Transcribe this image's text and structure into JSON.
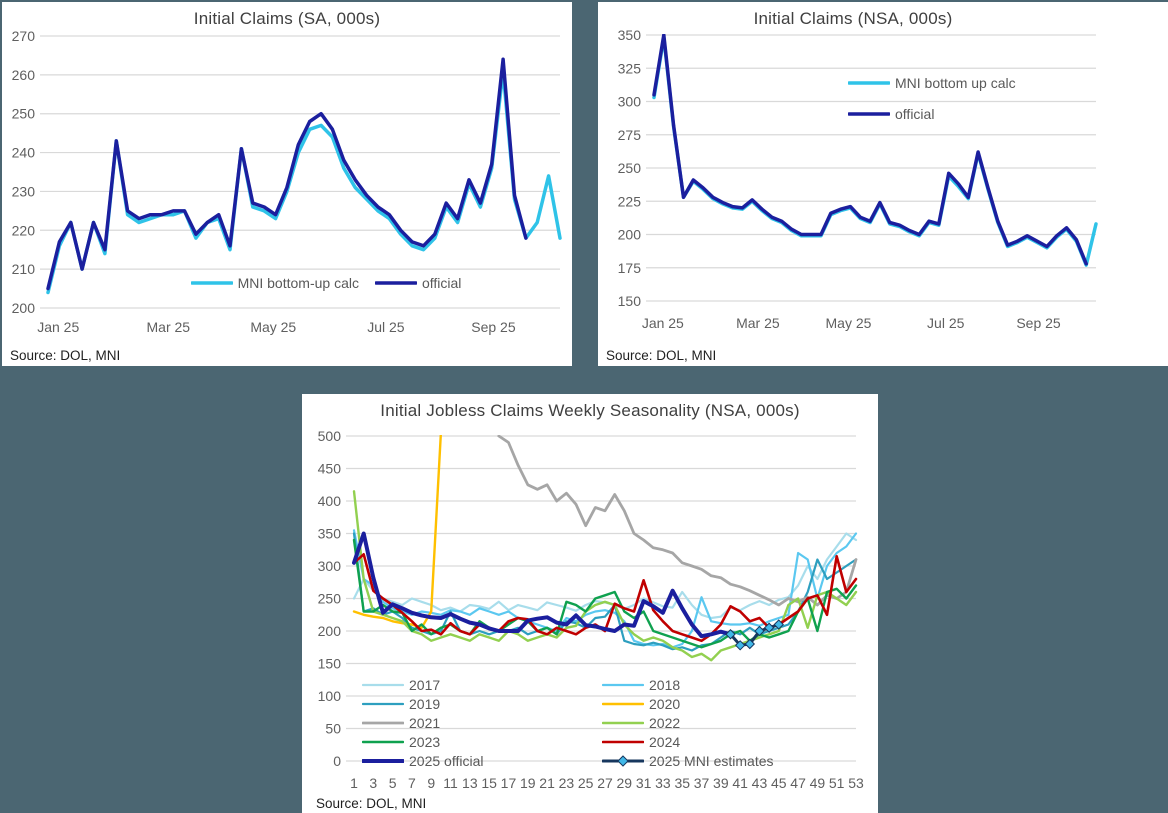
{
  "page": {
    "background_color": "#4b6672"
  },
  "chart_data": [
    {
      "type": "line",
      "title": "Initial Claims (SA, 000s)",
      "source": "Source: DOL, MNI",
      "ylim": [
        200,
        270
      ],
      "yticks": [
        200,
        210,
        220,
        230,
        240,
        250,
        260,
        270
      ],
      "grid": true,
      "legend_position": "bottom-center",
      "xticks": {
        "labels": [
          "Jan 25",
          "Mar 25",
          "May 25",
          "Jul 25",
          "Sep 25"
        ],
        "fractions": [
          0.02,
          0.235,
          0.44,
          0.66,
          0.87
        ]
      },
      "series": [
        {
          "name": "MNI bottom-up calc",
          "color": "#2fc3e8",
          "width": 3.5,
          "values": [
            204,
            216,
            222,
            210,
            222,
            214,
            243,
            224,
            222,
            223,
            224,
            224,
            225,
            218,
            222,
            223,
            215,
            241,
            226,
            225,
            223,
            230,
            240,
            246,
            247,
            244,
            236,
            231,
            228,
            225,
            223,
            219,
            216,
            215,
            218,
            226,
            222,
            232,
            226,
            236,
            261,
            228,
            218,
            222,
            234,
            218
          ]
        },
        {
          "name": "official",
          "color": "#1b1f9e",
          "width": 3.5,
          "values": [
            205,
            217,
            222,
            210,
            222,
            215,
            243,
            225,
            223,
            224,
            224,
            225,
            225,
            219,
            222,
            224,
            216,
            241,
            227,
            226,
            224,
            231,
            242,
            248,
            250,
            246,
            238,
            233,
            229,
            226,
            224,
            220,
            217,
            216,
            219,
            227,
            223,
            233,
            227,
            237,
            264,
            229,
            218,
            null,
            null,
            null
          ]
        }
      ]
    },
    {
      "type": "line",
      "title": "Initial Claims (NSA, 000s)",
      "source": "Source: DOL, MNI",
      "ylim": [
        150,
        350
      ],
      "yticks": [
        150,
        175,
        200,
        225,
        250,
        275,
        300,
        325,
        350
      ],
      "grid": true,
      "legend_position": "right-top",
      "xticks": {
        "labels": [
          "Jan 25",
          "Mar 25",
          "May 25",
          "Jul 25",
          "Sep 25"
        ],
        "fractions": [
          0.02,
          0.235,
          0.44,
          0.66,
          0.87
        ]
      },
      "series": [
        {
          "name": "MNI bottom up calc",
          "color": "#2fc3e8",
          "width": 3.5,
          "values": [
            303,
            348,
            281,
            228,
            240,
            234,
            227,
            223,
            220,
            219,
            225,
            218,
            212,
            209,
            203,
            199,
            199,
            199,
            215,
            218,
            220,
            212,
            209,
            223,
            208,
            206,
            202,
            199,
            209,
            207,
            244,
            236,
            227,
            261,
            234,
            209,
            191,
            194,
            198,
            194,
            190,
            198,
            204,
            195,
            177,
            208
          ]
        },
        {
          "name": "official",
          "color": "#1b1f9e",
          "width": 3.5,
          "values": [
            305,
            350,
            282,
            228,
            241,
            235,
            228,
            224,
            221,
            220,
            226,
            219,
            213,
            210,
            204,
            200,
            200,
            200,
            216,
            219,
            221,
            213,
            210,
            224,
            209,
            207,
            203,
            200,
            210,
            208,
            246,
            238,
            228,
            262,
            235,
            210,
            192,
            195,
            199,
            195,
            191,
            199,
            205,
            196,
            178,
            null
          ]
        }
      ]
    },
    {
      "type": "line",
      "title": "Initial Jobless Claims Weekly Seasonality (NSA, 000s)",
      "source": "Source: DOL, MNI",
      "ylim": [
        0,
        500
      ],
      "yticks": [
        0,
        50,
        100,
        150,
        200,
        250,
        300,
        350,
        400,
        450,
        500
      ],
      "grid": true,
      "legend_position": "bottom-two-column",
      "xticks": {
        "labels": [
          "1",
          "3",
          "5",
          "7",
          "9",
          "11",
          "13",
          "15",
          "17",
          "19",
          "21",
          "23",
          "25",
          "27",
          "29",
          "31",
          "33",
          "35",
          "37",
          "39",
          "41",
          "43",
          "45",
          "47",
          "49",
          "51",
          "53"
        ],
        "indices": [
          0,
          2,
          4,
          6,
          8,
          10,
          12,
          14,
          16,
          18,
          20,
          22,
          24,
          26,
          28,
          30,
          32,
          34,
          36,
          38,
          40,
          42,
          44,
          46,
          48,
          50,
          52
        ]
      },
      "series": [
        {
          "name": "2017",
          "color": "#a8ddeb",
          "width": 2.2,
          "values": [
            250,
            280,
            262,
            250,
            245,
            240,
            250,
            245,
            240,
            232,
            236,
            230,
            240,
            238,
            234,
            245,
            232,
            240,
            236,
            232,
            244,
            240,
            236,
            231,
            240,
            246,
            244,
            240,
            234,
            240,
            250,
            244,
            238,
            236,
            260,
            240,
            225,
            220,
            222,
            236,
            232,
            240,
            246,
            240,
            248,
            252,
            270,
            300,
            280,
            310,
            330,
            350,
            340
          ]
        },
        {
          "name": "2018",
          "color": "#5bc8f0",
          "width": 2.2,
          "values": [
            355,
            280,
            270,
            245,
            235,
            230,
            225,
            230,
            228,
            225,
            232,
            230,
            225,
            235,
            230,
            225,
            230,
            220,
            215,
            210,
            205,
            200,
            220,
            215,
            225,
            230,
            232,
            228,
            215,
            185,
            180,
            178,
            180,
            175,
            180,
            200,
            252,
            215,
            212,
            210,
            210,
            212,
            208,
            215,
            220,
            225,
            320,
            310,
            250,
            300,
            320,
            330,
            350
          ]
        },
        {
          "name": "2019",
          "color": "#2d9fbf",
          "width": 2.2,
          "values": [
            350,
            230,
            235,
            225,
            230,
            220,
            205,
            200,
            195,
            200,
            230,
            200,
            195,
            200,
            195,
            200,
            200,
            205,
            195,
            200,
            205,
            195,
            215,
            212,
            205,
            220,
            222,
            240,
            185,
            180,
            178,
            182,
            178,
            172,
            175,
            170,
            178,
            180,
            190,
            200,
            195,
            205,
            195,
            200,
            205,
            210,
            230,
            260,
            310,
            280,
            290,
            300,
            310
          ]
        },
        {
          "name": "2020",
          "color": "#ffc000",
          "width": 2.4,
          "values": [
            230,
            225,
            222,
            220,
            215,
            212,
            210,
            205,
            230,
            505,
            null,
            null,
            null,
            null,
            null,
            null,
            null,
            null,
            null,
            null,
            null,
            null,
            null,
            null,
            null,
            null,
            null,
            null,
            null,
            null,
            null,
            null,
            null,
            null,
            null,
            null,
            null,
            null,
            null,
            null,
            null,
            null,
            null,
            null,
            null,
            null,
            null,
            null,
            null,
            null,
            null,
            null,
            null
          ]
        },
        {
          "name": "2021",
          "color": "#a6a6a6",
          "width": 2.8,
          "values": [
            null,
            null,
            null,
            null,
            null,
            null,
            null,
            null,
            null,
            null,
            null,
            null,
            null,
            null,
            null,
            500,
            490,
            455,
            425,
            418,
            425,
            400,
            412,
            395,
            362,
            390,
            385,
            410,
            385,
            350,
            340,
            328,
            325,
            320,
            305,
            300,
            295,
            285,
            282,
            272,
            268,
            262,
            255,
            248,
            240,
            250,
            245,
            252,
            240,
            255,
            250,
            260,
            310
          ]
        },
        {
          "name": "2022",
          "color": "#92d050",
          "width": 2.4,
          "values": [
            415,
            280,
            230,
            225,
            220,
            215,
            200,
            195,
            185,
            190,
            195,
            190,
            185,
            195,
            190,
            185,
            200,
            195,
            185,
            190,
            195,
            190,
            205,
            208,
            230,
            240,
            245,
            240,
            210,
            195,
            185,
            190,
            185,
            175,
            170,
            160,
            165,
            155,
            170,
            175,
            180,
            185,
            190,
            195,
            200,
            240,
            250,
            205,
            255,
            260,
            250,
            240,
            260
          ]
        },
        {
          "name": "2023",
          "color": "#0fa14f",
          "width": 2.4,
          "values": [
            340,
            230,
            230,
            240,
            230,
            228,
            200,
            210,
            195,
            205,
            210,
            200,
            195,
            215,
            205,
            200,
            210,
            220,
            215,
            200,
            205,
            195,
            245,
            240,
            230,
            250,
            255,
            260,
            230,
            220,
            230,
            200,
            195,
            190,
            185,
            180,
            175,
            180,
            185,
            195,
            200,
            185,
            195,
            190,
            195,
            200,
            230,
            250,
            200,
            260,
            265,
            250,
            270
          ]
        },
        {
          "name": "2024",
          "color": "#c00000",
          "width": 2.6,
          "values": [
            305,
            318,
            262,
            250,
            240,
            228,
            215,
            200,
            202,
            195,
            212,
            200,
            195,
            210,
            205,
            200,
            215,
            220,
            218,
            200,
            195,
            205,
            200,
            195,
            205,
            210,
            200,
            242,
            235,
            230,
            278,
            232,
            215,
            200,
            195,
            190,
            185,
            195,
            210,
            238,
            230,
            215,
            220,
            205,
            210,
            220,
            230,
            250,
            255,
            225,
            315,
            260,
            280
          ]
        },
        {
          "name": "2025 official",
          "color": "#1b1f9e",
          "width": 4,
          "values": [
            305,
            350,
            282,
            228,
            241,
            235,
            228,
            224,
            221,
            220,
            226,
            219,
            213,
            210,
            204,
            200,
            200,
            200,
            216,
            219,
            221,
            213,
            210,
            224,
            209,
            207,
            203,
            200,
            210,
            208,
            246,
            238,
            228,
            262,
            235,
            210,
            192,
            195,
            199,
            195,
            null,
            null,
            null,
            null,
            null,
            null,
            null,
            null,
            null,
            null,
            null,
            null,
            null
          ]
        },
        {
          "name": "2025 MNI estimates",
          "color": "#17375e",
          "width": 3,
          "marker": "diamond",
          "marker_color": "#41b8e8",
          "values": [
            null,
            null,
            null,
            null,
            null,
            null,
            null,
            null,
            null,
            null,
            null,
            null,
            null,
            null,
            null,
            null,
            null,
            null,
            null,
            null,
            null,
            null,
            null,
            null,
            null,
            null,
            null,
            null,
            null,
            null,
            null,
            null,
            null,
            null,
            null,
            null,
            null,
            null,
            null,
            195,
            178,
            180,
            200,
            205,
            210,
            null,
            null,
            null,
            null,
            null,
            null,
            null,
            null
          ]
        }
      ]
    }
  ]
}
